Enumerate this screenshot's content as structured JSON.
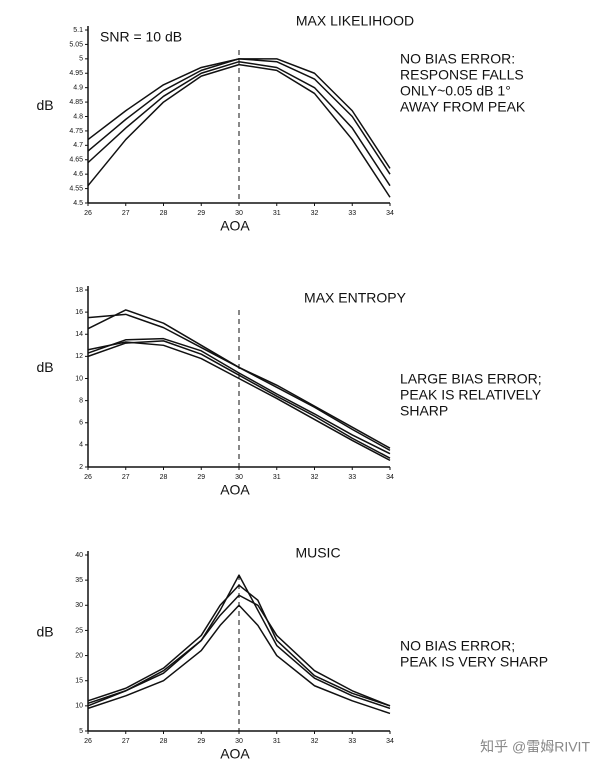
{
  "chart_data": [
    {
      "type": "line",
      "title": "MAX LIKELIHOOD",
      "annotation": "SNR = 10 dB",
      "note": [
        "NO BIAS ERROR:",
        "RESPONSE FALLS",
        "ONLY~0.05 dB 1°",
        "AWAY FROM PEAK"
      ],
      "x_label": "AOA",
      "y_label": "dB",
      "color": "#111",
      "marker_x": 30,
      "x": [
        26,
        27,
        28,
        29,
        30,
        31,
        32,
        33,
        34
      ],
      "series": [
        {
          "values": [
            4.72,
            4.82,
            4.91,
            4.97,
            5.0,
            5.0,
            4.95,
            4.82,
            4.62
          ]
        },
        {
          "values": [
            4.68,
            4.79,
            4.89,
            4.96,
            5.0,
            4.99,
            4.93,
            4.8,
            4.6
          ]
        },
        {
          "values": [
            4.64,
            4.76,
            4.87,
            4.95,
            4.99,
            4.97,
            4.9,
            4.76,
            4.56
          ]
        },
        {
          "values": [
            4.56,
            4.72,
            4.85,
            4.94,
            4.98,
            4.96,
            4.88,
            4.72,
            4.52
          ]
        }
      ],
      "xlim": [
        26,
        34
      ],
      "xticks": [
        26,
        27,
        28,
        29,
        30,
        31,
        32,
        33,
        34
      ],
      "ylim": [
        4.5,
        5.1
      ],
      "yticks": [
        4.5,
        4.55,
        4.6,
        4.65,
        4.7,
        4.75,
        4.8,
        4.85,
        4.9,
        4.95,
        5,
        5.05,
        5.1
      ]
    },
    {
      "type": "line",
      "title": "MAX ENTROPY",
      "note": [
        "LARGE BIAS ERROR;",
        "PEAK IS RELATIVELY",
        "SHARP"
      ],
      "x_label": "AOA",
      "y_label": "dB",
      "color": "#111",
      "marker_x": 30,
      "x": [
        26,
        27,
        28,
        29,
        30,
        31,
        32,
        33,
        34
      ],
      "series": [
        {
          "values": [
            14.5,
            16.2,
            15,
            13,
            11,
            9.4,
            7.5,
            5.6,
            3.7
          ]
        },
        {
          "values": [
            15.5,
            15.8,
            14.6,
            12.8,
            11,
            9.2,
            7.4,
            5.4,
            3.5
          ]
        },
        {
          "values": [
            12,
            13.2,
            13.4,
            12.2,
            10.3,
            8.4,
            6.6,
            4.6,
            2.8
          ]
        },
        {
          "values": [
            12.6,
            13.3,
            13,
            11.8,
            10,
            8.2,
            6.3,
            4.4,
            2.6
          ]
        },
        {
          "values": [
            12.3,
            13.5,
            13.6,
            12.5,
            10.5,
            8.6,
            6.8,
            4.9,
            3.2
          ]
        }
      ],
      "xlim": [
        26,
        34
      ],
      "xticks": [
        26,
        27,
        28,
        29,
        30,
        31,
        32,
        33,
        34
      ],
      "ylim": [
        2,
        18
      ],
      "yticks": [
        2,
        4,
        6,
        8,
        10,
        12,
        14,
        16,
        18
      ]
    },
    {
      "type": "line",
      "title": "MUSIC",
      "note": [
        "NO BIAS ERROR;",
        "PEAK IS VERY SHARP"
      ],
      "x_label": "AOA",
      "y_label": "dB",
      "color": "#111",
      "marker_x": 30,
      "x": [
        26,
        27,
        28,
        29,
        29.5,
        30,
        30.5,
        31,
        32,
        33,
        34
      ],
      "series": [
        {
          "values": [
            10,
            13,
            16.5,
            23,
            29,
            36,
            29,
            22,
            15.5,
            12,
            9.5
          ]
        },
        {
          "values": [
            11,
            13.5,
            17.5,
            24,
            30,
            34,
            31,
            23,
            16,
            12.5,
            10
          ]
        },
        {
          "values": [
            10.5,
            13,
            17,
            23,
            28,
            32,
            30,
            24,
            17,
            13,
            10
          ]
        },
        {
          "values": [
            9.5,
            12,
            15,
            21,
            26,
            30,
            26,
            20,
            14,
            11,
            8.5
          ]
        }
      ],
      "xlim": [
        26,
        34
      ],
      "xticks": [
        26,
        27,
        28,
        29,
        30,
        31,
        32,
        33,
        34
      ],
      "ylim": [
        5,
        40
      ],
      "yticks": [
        5,
        10,
        15,
        20,
        25,
        30,
        35,
        40
      ]
    }
  ],
  "watermark": "知乎 @雷姆RIVIT"
}
